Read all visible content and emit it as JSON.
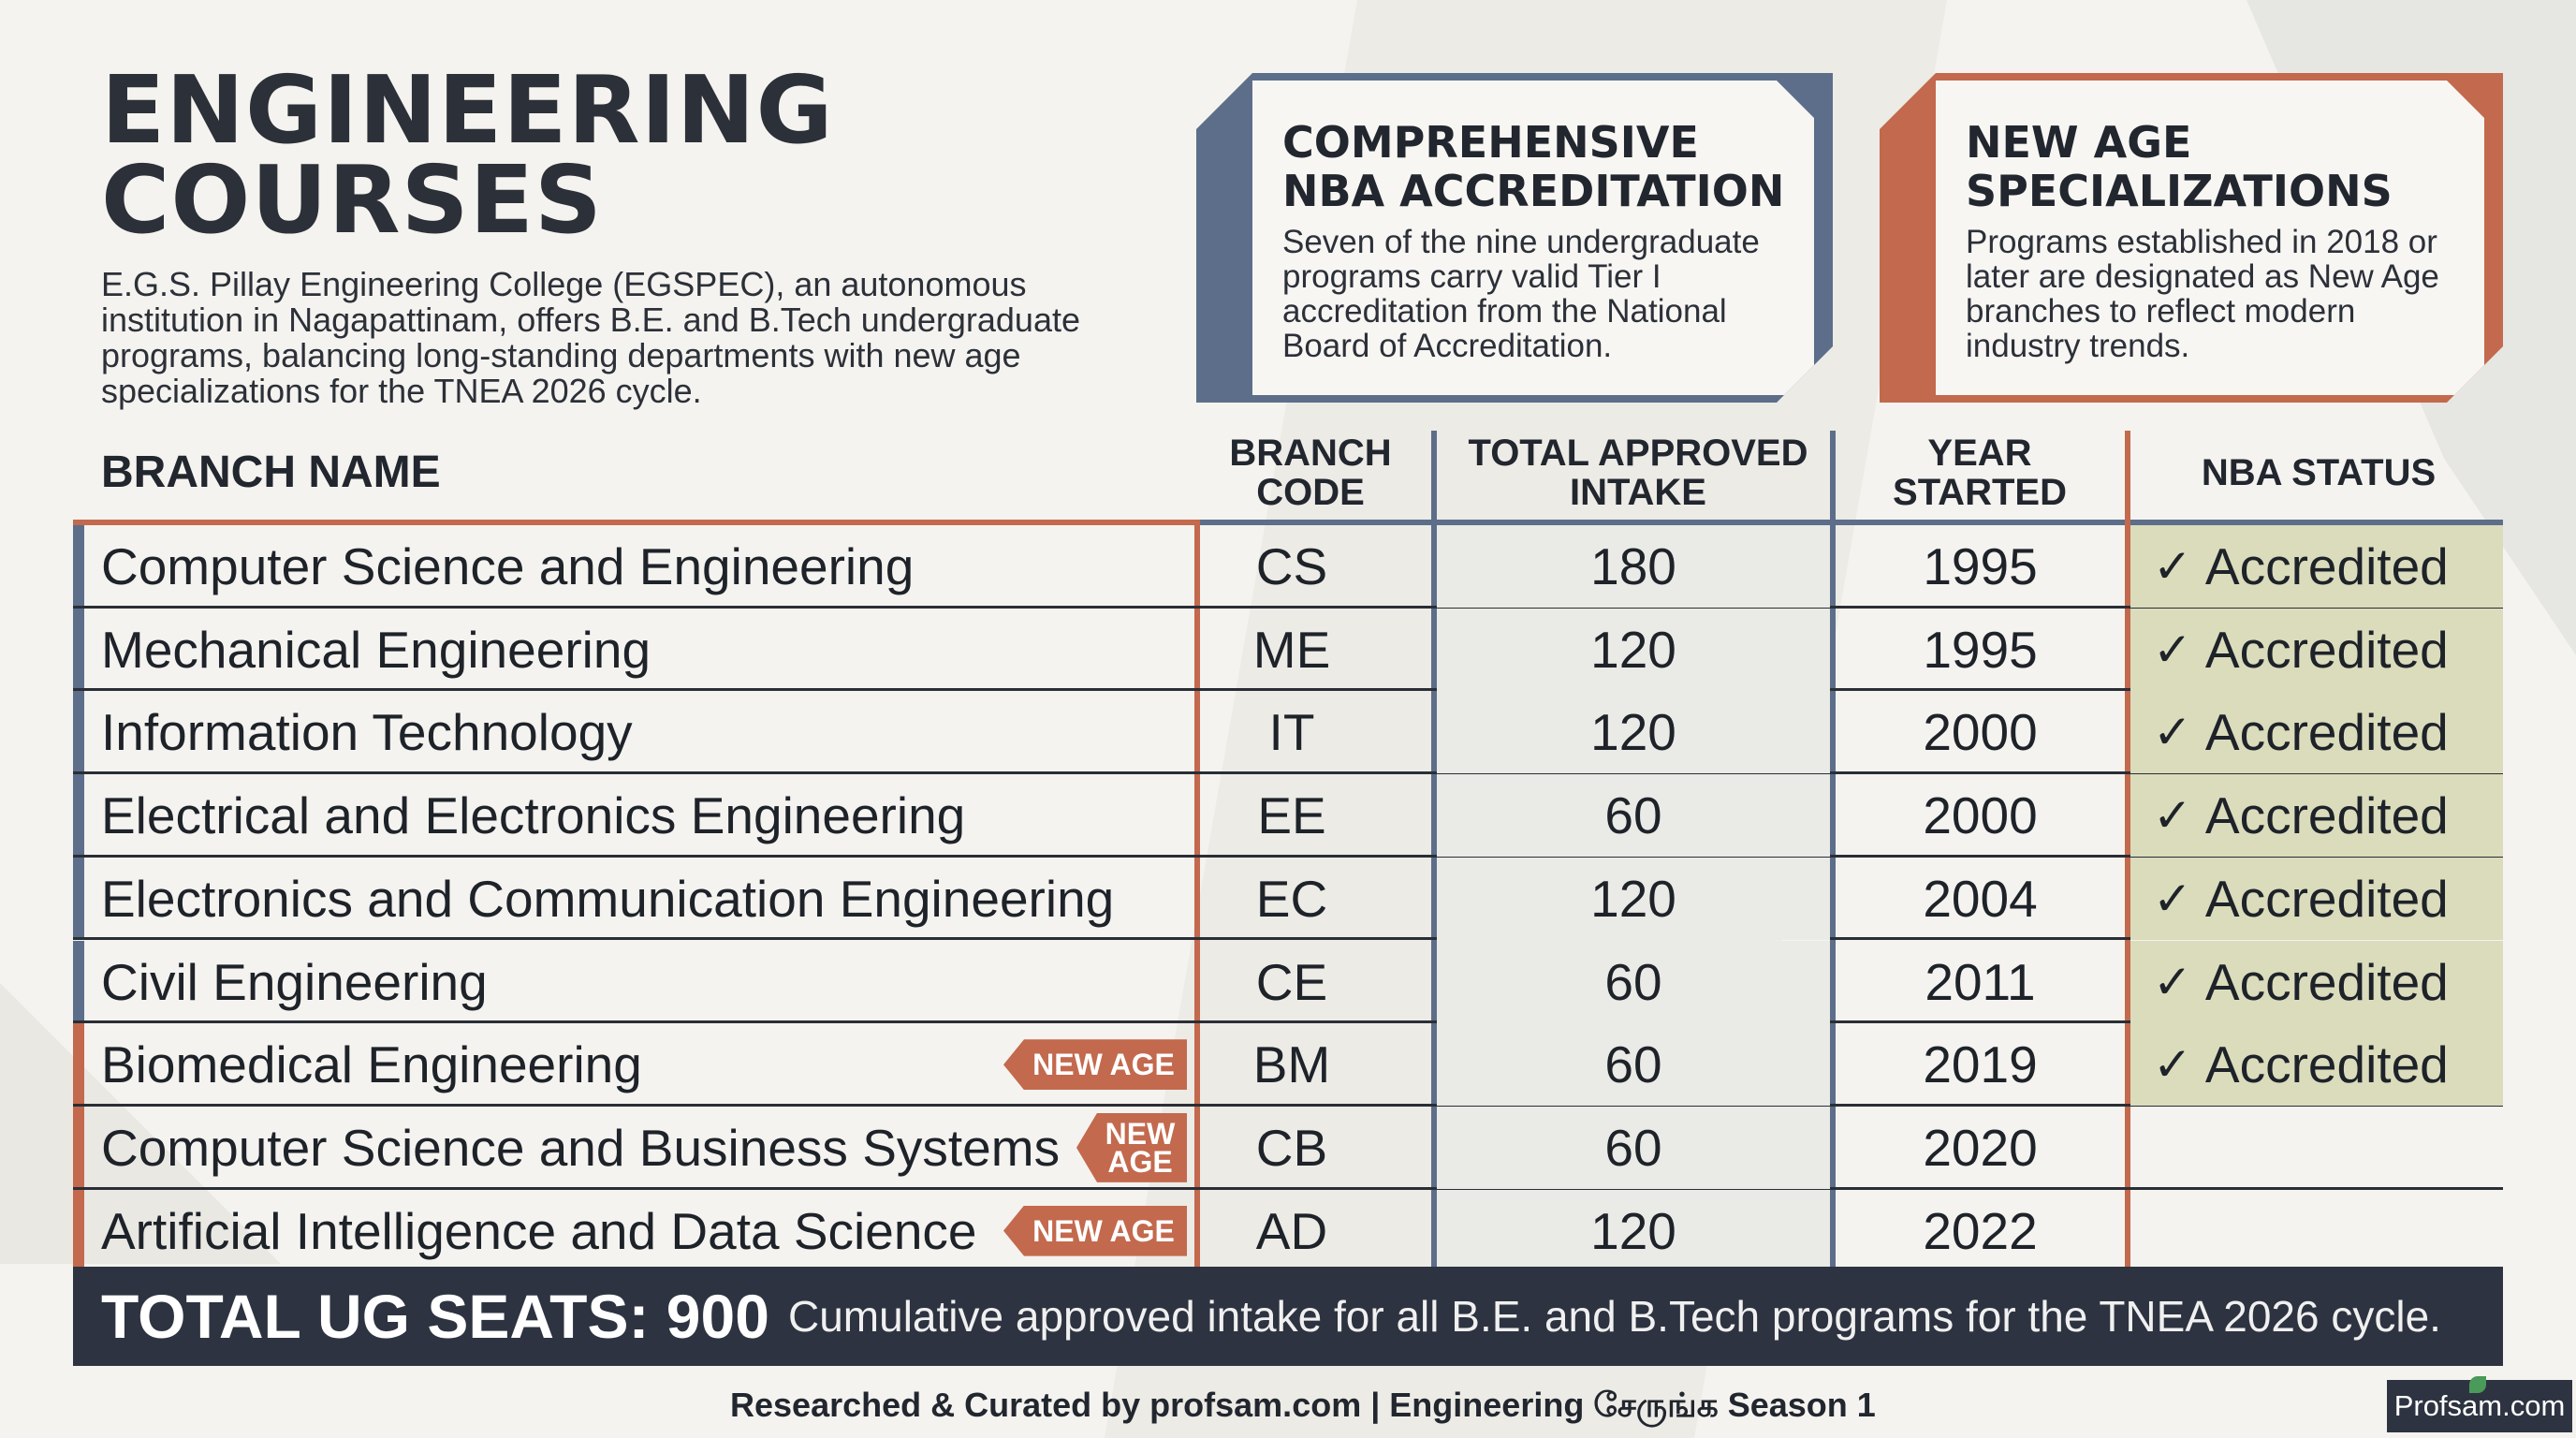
{
  "header": {
    "title_line1": "ENGINEERING",
    "title_line2": "COURSES",
    "intro": "E.G.S. Pillay Engineering College (EGSPEC), an autonomous institution in Nagapattinam, offers B.E. and B.Tech undergraduate programs, balancing long-standing departments with new age specializations for the TNEA 2026 cycle."
  },
  "cards": [
    {
      "title_line1": "COMPREHENSIVE",
      "title_line2": "NBA ACCREDITATION",
      "body": "Seven of the nine undergraduate programs carry valid Tier I accreditation from the National Board of Accreditation.",
      "accent": "#5c6e89"
    },
    {
      "title_line1": "NEW AGE",
      "title_line2": "SPECIALIZATIONS",
      "body": "Programs established in 2018 or later are designated as New Age branches to reflect modern industry trends.",
      "accent": "#c3694d"
    }
  ],
  "table": {
    "columns": {
      "name": "BRANCH NAME",
      "code_line1": "BRANCH",
      "code_line2": "CODE",
      "intake_line1": "TOTAL APPROVED",
      "intake_line2": "INTAKE",
      "year_line1": "YEAR",
      "year_line2": "STARTED",
      "nba": "NBA STATUS"
    },
    "badge_label": "NEW AGE",
    "badge_label_line1": "NEW",
    "badge_label_line2": "AGE",
    "rows": [
      {
        "name": "Computer Science and Engineering",
        "code": "CS",
        "intake": "180",
        "year": "1995",
        "nba": "Accredited",
        "new_age": false
      },
      {
        "name": "Mechanical Engineering",
        "code": "ME",
        "intake": "120",
        "year": "1995",
        "nba": "Accredited",
        "new_age": false
      },
      {
        "name": "Information Technology",
        "code": "IT",
        "intake": "120",
        "year": "2000",
        "nba": "Accredited",
        "new_age": false
      },
      {
        "name": "Electrical and Electronics Engineering",
        "code": "EE",
        "intake": "60",
        "year": "2000",
        "nba": "Accredited",
        "new_age": false
      },
      {
        "name": "Electronics and Communication Engineering",
        "code": "EC",
        "intake": "120",
        "year": "2004",
        "nba": "Accredited",
        "new_age": false
      },
      {
        "name": "Civil Engineering",
        "code": "CE",
        "intake": "60",
        "year": "2011",
        "nba": "Accredited",
        "new_age": false
      },
      {
        "name": "Biomedical Engineering",
        "code": "BM",
        "intake": "60",
        "year": "2019",
        "nba": "Accredited",
        "new_age": true
      },
      {
        "name": "Computer Science and Business Systems",
        "code": "CB",
        "intake": "60",
        "year": "2020",
        "nba": "",
        "new_age": true
      },
      {
        "name": "Artificial Intelligence and Data Science",
        "code": "AD",
        "intake": "120",
        "year": "2022",
        "nba": "",
        "new_age": true
      }
    ]
  },
  "footer": {
    "total": "TOTAL UG SEATS: 900",
    "total_desc": "Cumulative approved intake for all B.E. and B.Tech programs for the TNEA 2026 cycle.",
    "credit": "Researched & Curated by profsam.com | Engineering சேருங்க Season 1",
    "logo": "Profsam.com"
  },
  "colors": {
    "blue_accent": "#5c6e89",
    "orange_accent": "#c3694d",
    "accredited_bg": "#dadcbc",
    "dark_bar": "#2d3340"
  },
  "icons": {
    "check": "check-icon"
  }
}
